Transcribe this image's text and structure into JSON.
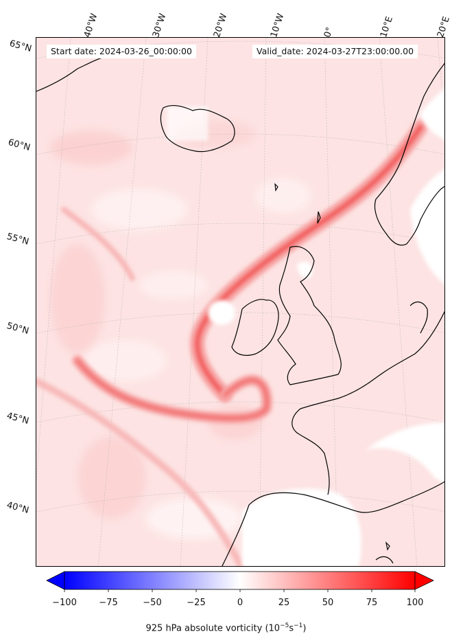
{
  "header": {
    "start_date": "Start date: 2024-03-26_00:00:00",
    "valid_date": "Valid_date: 2024-03-27T23:00:00.00"
  },
  "longitude_labels": [
    "40°W",
    "30°W",
    "20°W",
    "10°W",
    "0°",
    "10°E",
    "20°E"
  ],
  "latitude_labels": [
    "65°N",
    "60°N",
    "55°N",
    "50°N",
    "45°N",
    "40°N"
  ],
  "colorbar": {
    "title": "925 hPa absolute vorticity (10",
    "title_exp": "−5",
    "title_unit": "s",
    "title_exp2": "−1",
    "title_close": ")",
    "ticks": [
      "−100",
      "−75",
      "−50",
      "−25",
      "0",
      "25",
      "50",
      "75",
      "100"
    ],
    "min_color": "#0000ff",
    "mid_color": "#ffffff",
    "max_color": "#ff0000"
  }
}
